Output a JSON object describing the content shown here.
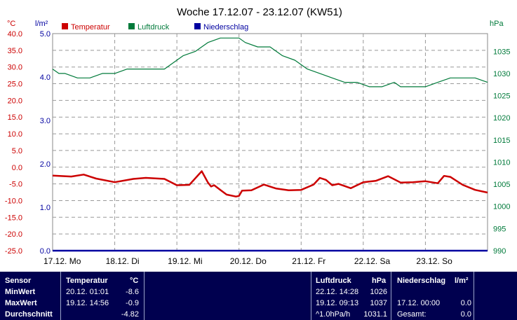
{
  "chart_data": {
    "type": "line",
    "title": "Woche 17.12.07 - 23.12.07 (KW51)",
    "legend": [
      "Temperatur",
      "Luftdruck",
      "Niederschlag"
    ],
    "legend_colors": {
      "Temperatur": "#cc0000",
      "Luftdruck": "#007a3a",
      "Niederschlag": "#0000a0"
    },
    "units": {
      "temp": "°C",
      "rain": "l/m²",
      "pressure": "hPa"
    },
    "x_ticks": [
      "17.12. Mo",
      "18.12. Di",
      "19.12. Mi",
      "20.12. Do",
      "21.12. Fr",
      "22.12. Sa",
      "23.12. So"
    ],
    "temp_ticks": [
      "40.0",
      "35.0",
      "30.0",
      "25.0",
      "20.0",
      "15.0",
      "10.0",
      "5.0",
      "0.0",
      "-5.0",
      "-10.0",
      "-15.0",
      "-20.0",
      "-25.0"
    ],
    "rain_ticks": [
      "5.0",
      "4.0",
      "3.0",
      "2.0",
      "1.0",
      "0.0"
    ],
    "pressure_ticks": [
      "1035",
      "1030",
      "1025",
      "1020",
      "1015",
      "1010",
      "1005",
      "1000",
      "995",
      "990"
    ],
    "ylim_temp": [
      -25,
      40
    ],
    "ylim_rain": [
      0,
      5
    ],
    "ylim_pressure": [
      990,
      1039
    ],
    "grid": true,
    "series": [
      {
        "name": "Temperatur",
        "x": [
          0,
          0.3,
          0.5,
          0.7,
          1,
          1.3,
          1.5,
          1.8,
          2,
          2.2,
          2.4,
          2.5,
          2.55,
          2.6,
          2.7,
          2.8,
          2.95,
          3,
          3.05,
          3.2,
          3.4,
          3.6,
          3.8,
          4,
          4.2,
          4.3,
          4.4,
          4.5,
          4.6,
          4.8,
          5,
          5.2,
          5.4,
          5.6,
          5.8,
          6,
          6.2,
          6.3,
          6.4,
          6.6,
          6.8,
          7
        ],
        "y": [
          -2.5,
          -2.8,
          -2.2,
          -3.4,
          -4.5,
          -3.5,
          -3.2,
          -3.5,
          -5.4,
          -5.3,
          -1.2,
          -4.6,
          -5.8,
          -5.4,
          -6.8,
          -8.2,
          -8.8,
          -8.6,
          -7.0,
          -6.9,
          -5.2,
          -6.4,
          -6.9,
          -6.8,
          -5.2,
          -3.2,
          -3.8,
          -5.4,
          -5.0,
          -6.3,
          -4.5,
          -4.1,
          -2.7,
          -4.6,
          -4.5,
          -4.2,
          -4.8,
          -2.6,
          -2.9,
          -5.3,
          -6.8,
          -7.6
        ]
      },
      {
        "name": "Luftdruck",
        "x": [
          0,
          0.1,
          0.2,
          0.4,
          0.6,
          0.8,
          1,
          1.2,
          1.4,
          1.6,
          1.8,
          2,
          2.1,
          2.3,
          2.5,
          2.7,
          2.9,
          3,
          3.1,
          3.3,
          3.5,
          3.7,
          3.9,
          4.1,
          4.3,
          4.5,
          4.7,
          4.9,
          5.1,
          5.3,
          5.5,
          5.6,
          5.8,
          6,
          6.2,
          6.4,
          6.6,
          6.8,
          7
        ],
        "y": [
          1031,
          1030,
          1030,
          1029,
          1029,
          1030,
          1030,
          1031,
          1031,
          1031,
          1031,
          1033,
          1034,
          1035,
          1037,
          1038,
          1038,
          1038,
          1037,
          1036,
          1036,
          1034,
          1033,
          1031,
          1030,
          1029,
          1028,
          1028,
          1027,
          1027,
          1028,
          1027,
          1027,
          1027,
          1028,
          1029,
          1029,
          1029,
          1028
        ]
      },
      {
        "name": "Niederschlag",
        "x": [
          0,
          7
        ],
        "y": [
          0,
          0
        ]
      }
    ]
  },
  "table": {
    "headers": {
      "sensor": "Sensor",
      "temp": "Temperatur",
      "temp_unit": "°C",
      "pressure": "Luftdruck",
      "pressure_unit": "hPa",
      "rain": "Niederschlag",
      "rain_unit": "l/m²"
    },
    "rows": [
      {
        "label": "MinWert",
        "temp_time": "20.12.  01:01",
        "temp_val": "-8.6",
        "pressure_time": "22.12.  14:28",
        "pressure_val": "1026",
        "rain_time": "",
        "rain_val": ""
      },
      {
        "label": "MaxWert",
        "temp_time": "19.12.  14:56",
        "temp_val": "-0.9",
        "pressure_time": "19.12.  09:13",
        "pressure_val": "1037",
        "rain_time": "17.12.  00:00",
        "rain_val": "0.0"
      },
      {
        "label": "Durchschnitt",
        "temp_time": "",
        "temp_val": "-4.82",
        "pressure_time": "^1.0hPa/h",
        "pressure_val": "1031.1",
        "rain_time": "Gesamt:",
        "rain_val": "0.0"
      }
    ]
  }
}
